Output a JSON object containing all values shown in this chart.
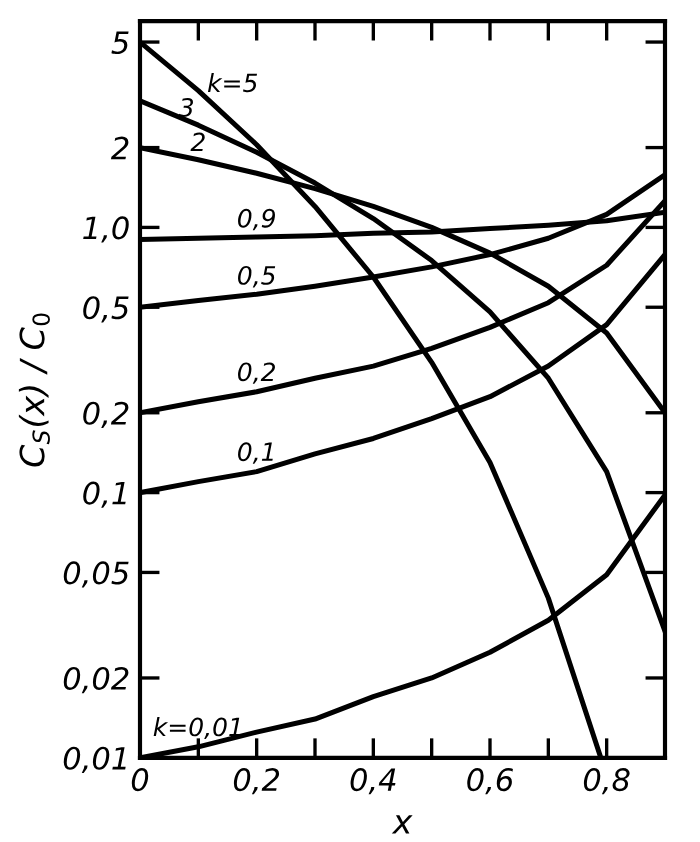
{
  "chart_data": {
    "type": "line",
    "xlabel": "x",
    "ylabel": "C$_{S}$(x) / C$_{0}$",
    "log": "y",
    "grid": false,
    "legend": false,
    "marker": "none",
    "line_style": "solid",
    "xlim": [
      0,
      0.9
    ],
    "ylim": [
      0.01,
      6
    ],
    "xticks": [
      {
        "value": 0,
        "label": "0"
      },
      {
        "value": 0.1,
        "label": null
      },
      {
        "value": 0.2,
        "label": "0,2"
      },
      {
        "value": 0.3,
        "label": null
      },
      {
        "value": 0.4,
        "label": "0,4"
      },
      {
        "value": 0.5,
        "label": null
      },
      {
        "value": 0.6,
        "label": "0,6"
      },
      {
        "value": 0.7,
        "label": null
      },
      {
        "value": 0.8,
        "label": "0,8"
      }
    ],
    "yticks": [
      {
        "value": 0.01,
        "label": "0,01"
      },
      {
        "value": 0.02,
        "label": "0,02"
      },
      {
        "value": 0.05,
        "label": "0,05"
      },
      {
        "value": 0.1,
        "label": "0,1"
      },
      {
        "value": 0.2,
        "label": "0,2"
      },
      {
        "value": 0.5,
        "label": "0,5"
      },
      {
        "value": 1,
        "label": "1,0"
      },
      2,
      5
    ],
    "x": [
      0,
      0.1,
      0.2,
      0.3,
      0.4,
      0.5,
      0.6,
      0.7,
      0.8,
      0.9
    ],
    "series": [
      {
        "name": "k=5",
        "color": "#000000",
        "x": [
          0,
          0.1,
          0.2,
          0.3,
          0.4,
          0.5,
          0.6,
          0.7,
          0.79
        ],
        "values": [
          5,
          3.28,
          2.05,
          1.2,
          0.65,
          0.31,
          0.13,
          0.04,
          0.01
        ]
      },
      {
        "name": "3",
        "color": "#000000",
        "values": [
          3,
          2.43,
          1.92,
          1.47,
          1.08,
          0.75,
          0.48,
          0.27,
          0.12,
          0.03
        ]
      },
      {
        "name": "2",
        "color": "#000000",
        "values": [
          2,
          1.8,
          1.6,
          1.4,
          1.2,
          1.0,
          0.8,
          0.6,
          0.4,
          0.2
        ]
      },
      {
        "name": "0,9",
        "color": "#000000",
        "values": [
          0.9,
          0.91,
          0.92,
          0.93,
          0.95,
          0.96,
          0.99,
          1.02,
          1.06,
          1.14
        ]
      },
      {
        "name": "0,5",
        "color": "#000000",
        "values": [
          0.5,
          0.53,
          0.56,
          0.6,
          0.65,
          0.71,
          0.79,
          0.91,
          1.12,
          1.58
        ]
      },
      {
        "name": "0,2",
        "color": "#000000",
        "values": [
          0.2,
          0.22,
          0.24,
          0.27,
          0.3,
          0.35,
          0.42,
          0.52,
          0.72,
          1.26
        ]
      },
      {
        "name": "0,1",
        "color": "#000000",
        "values": [
          0.1,
          0.11,
          0.12,
          0.14,
          0.16,
          0.19,
          0.23,
          0.3,
          0.43,
          0.79
        ]
      },
      {
        "name": "k=0,01",
        "color": "#000000",
        "values": [
          0.01,
          0.011,
          0.0125,
          0.014,
          0.017,
          0.02,
          0.025,
          0.033,
          0.049,
          0.098
        ]
      }
    ]
  }
}
